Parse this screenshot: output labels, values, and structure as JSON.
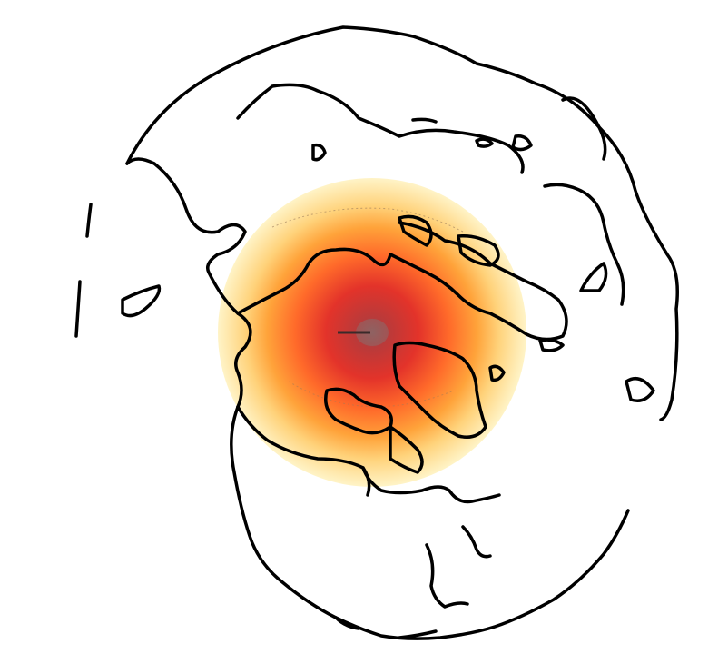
{
  "map": {
    "projection": "orthographic",
    "hemisphere": "northern",
    "center": "north-pole",
    "layers": [
      "coastlines",
      "polar-field-overlay"
    ],
    "coastline_color": "#000000",
    "background_color": "#ffffff"
  },
  "overlay": {
    "type": "radial-field",
    "colormap": [
      "#fff3c4",
      "#ffd27a",
      "#ffa33a",
      "#ff6a2a",
      "#e3332a",
      "#b93a3a",
      "#8e5a5a"
    ],
    "max_near": "north-pole"
  }
}
